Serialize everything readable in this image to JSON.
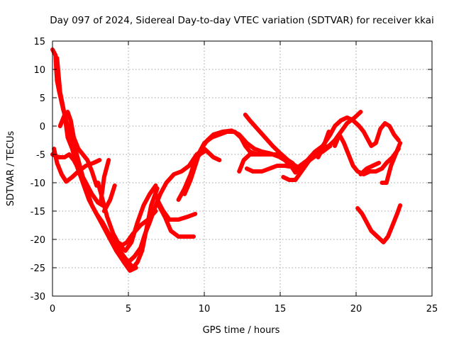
{
  "chart_data": {
    "type": "line",
    "title": "Day 097 of 2024, Sidereal Day-to-day VTEC variation (SDTVAR) for receiver kkai",
    "xlabel": "GPS time / hours",
    "ylabel": "SDTVAR / TECUs",
    "xlim": [
      0,
      25
    ],
    "ylim": [
      -30,
      15
    ],
    "xticks": [
      "0",
      "5",
      "10",
      "15",
      "20",
      "25"
    ],
    "yticks": [
      "15",
      "10",
      "5",
      "0",
      "-5",
      "-10",
      "-15",
      "-20",
      "-25",
      "-30"
    ],
    "grid": true,
    "color": "#ff0000",
    "series": [
      {
        "name": "track-1",
        "points": [
          [
            0.0,
            13.5
          ],
          [
            0.2,
            12.5
          ],
          [
            0.25,
            10
          ],
          [
            0.3,
            8
          ],
          [
            0.45,
            6
          ],
          [
            0.7,
            3
          ],
          [
            1.0,
            0
          ],
          [
            1.3,
            -2
          ],
          [
            1.6,
            -5
          ],
          [
            1.9,
            -8
          ],
          [
            2.2,
            -11
          ],
          [
            2.6,
            -14
          ],
          [
            3.0,
            -16
          ],
          [
            3.4,
            -18
          ],
          [
            3.8,
            -20
          ],
          [
            4.2,
            -22
          ],
          [
            4.7,
            -24
          ],
          [
            5.1,
            -25.5
          ],
          [
            5.5,
            -25
          ]
        ]
      },
      {
        "name": "track-2",
        "points": [
          [
            0.3,
            12
          ],
          [
            0.5,
            6
          ],
          [
            0.8,
            2
          ],
          [
            1.0,
            -2
          ],
          [
            1.3,
            -4
          ],
          [
            1.6,
            -7
          ],
          [
            2.0,
            -10
          ],
          [
            2.4,
            -13
          ],
          [
            2.9,
            -15.5
          ],
          [
            3.3,
            -17
          ],
          [
            3.7,
            -19
          ],
          [
            4.2,
            -21
          ],
          [
            4.7,
            -23
          ],
          [
            5.3,
            -25
          ],
          [
            5.6,
            -24
          ],
          [
            5.9,
            -22
          ],
          [
            6.2,
            -18
          ],
          [
            6.5,
            -14
          ],
          [
            6.9,
            -11
          ]
        ]
      },
      {
        "name": "track-3",
        "points": [
          [
            0.1,
            -4
          ],
          [
            0.3,
            -6.5
          ],
          [
            0.6,
            -8.5
          ],
          [
            0.9,
            -9.8
          ],
          [
            1.3,
            -9
          ],
          [
            1.7,
            -8
          ],
          [
            2.2,
            -7
          ],
          [
            2.7,
            -6.5
          ],
          [
            3.1,
            -6
          ]
        ]
      },
      {
        "name": "track-4",
        "points": [
          [
            0.0,
            -5
          ],
          [
            0.4,
            -5.5
          ],
          [
            0.8,
            -5.5
          ],
          [
            1.1,
            -5
          ],
          [
            1.4,
            -6
          ],
          [
            1.8,
            -8
          ],
          [
            2.2,
            -10
          ],
          [
            2.6,
            -12
          ],
          [
            3.0,
            -13.5
          ],
          [
            3.3,
            -14
          ]
        ]
      },
      {
        "name": "track-5",
        "points": [
          [
            0.5,
            0
          ],
          [
            0.8,
            2
          ],
          [
            1.0,
            2.5
          ],
          [
            1.2,
            1
          ],
          [
            1.4,
            -2
          ],
          [
            1.7,
            -4
          ],
          [
            2.0,
            -5
          ],
          [
            2.3,
            -6
          ],
          [
            2.6,
            -8
          ],
          [
            2.9,
            -10.5
          ]
        ]
      },
      {
        "name": "track-6",
        "points": [
          [
            3.2,
            -13
          ],
          [
            3.4,
            -9
          ],
          [
            3.7,
            -6
          ]
        ]
      },
      {
        "name": "track-7",
        "points": [
          [
            3.4,
            -15
          ],
          [
            3.8,
            -13
          ],
          [
            4.1,
            -10.5
          ]
        ]
      },
      {
        "name": "track-8",
        "points": [
          [
            3.0,
            -10
          ],
          [
            3.3,
            -13
          ],
          [
            3.6,
            -16
          ],
          [
            4.0,
            -19
          ],
          [
            4.4,
            -21
          ],
          [
            4.8,
            -22
          ],
          [
            5.2,
            -20.5
          ],
          [
            5.6,
            -17
          ],
          [
            6.0,
            -14
          ],
          [
            6.4,
            -12
          ],
          [
            6.8,
            -10.5
          ]
        ]
      },
      {
        "name": "track-9",
        "points": [
          [
            4.0,
            -19
          ],
          [
            4.3,
            -20.5
          ],
          [
            4.6,
            -21
          ],
          [
            4.9,
            -20.5
          ],
          [
            5.3,
            -19
          ],
          [
            5.8,
            -17.5
          ],
          [
            6.3,
            -16.5
          ],
          [
            6.8,
            -15
          ]
        ]
      },
      {
        "name": "track-10",
        "points": [
          [
            5.0,
            -24
          ],
          [
            5.4,
            -23
          ],
          [
            5.8,
            -21.5
          ],
          [
            6.1,
            -19
          ],
          [
            6.4,
            -17
          ],
          [
            6.8,
            -14
          ],
          [
            7.1,
            -12
          ],
          [
            7.5,
            -10
          ],
          [
            8.0,
            -8.5
          ],
          [
            8.5,
            -8
          ],
          [
            9.0,
            -7
          ],
          [
            9.5,
            -5
          ],
          [
            10.0,
            -4
          ],
          [
            10.6,
            -5.5
          ],
          [
            11.0,
            -6
          ]
        ]
      },
      {
        "name": "track-11",
        "points": [
          [
            6.8,
            -12
          ],
          [
            7.0,
            -13.5
          ],
          [
            7.3,
            -15
          ],
          [
            7.7,
            -16.5
          ],
          [
            8.3,
            -16.5
          ],
          [
            8.9,
            -16
          ],
          [
            9.4,
            -15.5
          ]
        ]
      },
      {
        "name": "track-12",
        "points": [
          [
            7.0,
            -14
          ],
          [
            7.4,
            -16
          ],
          [
            7.8,
            -18.5
          ],
          [
            8.3,
            -19.5
          ],
          [
            8.8,
            -19.5
          ],
          [
            9.3,
            -19.5
          ]
        ]
      },
      {
        "name": "track-13",
        "points": [
          [
            8.3,
            -13
          ],
          [
            8.7,
            -11
          ],
          [
            9.1,
            -8.5
          ],
          [
            9.4,
            -6
          ],
          [
            9.7,
            -5
          ],
          [
            10.0,
            -4.5
          ]
        ]
      },
      {
        "name": "track-14",
        "points": [
          [
            8.7,
            -12
          ],
          [
            9.1,
            -9.5
          ],
          [
            9.4,
            -7
          ],
          [
            9.7,
            -4.5
          ],
          [
            10.0,
            -3
          ],
          [
            10.5,
            -2
          ],
          [
            11.0,
            -1.5
          ],
          [
            11.5,
            -1
          ],
          [
            12.0,
            -1
          ],
          [
            12.4,
            -2
          ],
          [
            12.7,
            -3.5
          ],
          [
            13.0,
            -4.5
          ],
          [
            13.5,
            -5
          ],
          [
            14.0,
            -5
          ],
          [
            14.5,
            -5
          ],
          [
            15.0,
            -5.5
          ],
          [
            15.5,
            -6
          ],
          [
            15.8,
            -6.5
          ],
          [
            16.2,
            -8
          ]
        ]
      },
      {
        "name": "track-15",
        "points": [
          [
            9.8,
            -4
          ],
          [
            10.2,
            -2.5
          ],
          [
            10.6,
            -1.5
          ],
          [
            11.2,
            -1
          ],
          [
            11.8,
            -0.8
          ],
          [
            12.3,
            -1.5
          ],
          [
            12.8,
            -3
          ],
          [
            13.3,
            -4
          ],
          [
            13.8,
            -4.5
          ],
          [
            14.3,
            -4.8
          ],
          [
            14.8,
            -5.2
          ],
          [
            15.3,
            -6
          ],
          [
            15.7,
            -7
          ],
          [
            16.0,
            -8.2
          ]
        ]
      },
      {
        "name": "track-16",
        "points": [
          [
            12.7,
            2
          ],
          [
            13.0,
            1
          ],
          [
            13.5,
            -0.5
          ],
          [
            14.0,
            -2
          ],
          [
            14.5,
            -3.5
          ],
          [
            15.0,
            -4.8
          ],
          [
            15.5,
            -6
          ],
          [
            16.0,
            -7
          ],
          [
            16.4,
            -7.5
          ]
        ]
      },
      {
        "name": "track-17",
        "points": [
          [
            12.8,
            -7.5
          ],
          [
            13.2,
            -8
          ],
          [
            13.8,
            -8
          ],
          [
            14.3,
            -7.5
          ],
          [
            14.8,
            -7
          ],
          [
            15.3,
            -7
          ],
          [
            15.8,
            -7.2
          ],
          [
            16.3,
            -7.5
          ],
          [
            16.7,
            -6.5
          ],
          [
            17.2,
            -5.5
          ],
          [
            17.8,
            -4.5
          ],
          [
            18.3,
            -3.5
          ]
        ]
      },
      {
        "name": "track-18",
        "points": [
          [
            12.3,
            -8
          ],
          [
            12.6,
            -6
          ],
          [
            13.0,
            -5
          ],
          [
            13.5,
            -5
          ],
          [
            14.0,
            -5
          ],
          [
            14.5,
            -5
          ],
          [
            15.0,
            -5
          ],
          [
            15.5,
            -6
          ]
        ]
      },
      {
        "name": "track-19",
        "points": [
          [
            15.2,
            -9
          ],
          [
            15.6,
            -9.5
          ],
          [
            16.0,
            -9.5
          ],
          [
            16.4,
            -8
          ],
          [
            16.8,
            -6.5
          ],
          [
            17.2,
            -5
          ],
          [
            17.7,
            -4
          ],
          [
            18.2,
            -3.5
          ],
          [
            18.6,
            -2.5
          ],
          [
            19.0,
            -1
          ],
          [
            19.4,
            0.5
          ],
          [
            19.9,
            1.5
          ],
          [
            20.3,
            2.5
          ]
        ]
      },
      {
        "name": "track-20",
        "points": [
          [
            16.3,
            -7
          ],
          [
            16.8,
            -6
          ],
          [
            17.3,
            -4.5
          ],
          [
            17.8,
            -3.5
          ],
          [
            18.3,
            -1.5
          ],
          [
            18.6,
            0
          ],
          [
            19.0,
            1
          ],
          [
            19.4,
            1.5
          ],
          [
            19.8,
            1
          ],
          [
            20.2,
            0
          ],
          [
            20.5,
            -1
          ],
          [
            20.8,
            -2.5
          ],
          [
            21.0,
            -3.5
          ],
          [
            21.3,
            -3
          ],
          [
            21.6,
            -0.5
          ],
          [
            21.9,
            0.5
          ],
          [
            22.2,
            0
          ],
          [
            22.5,
            -1.5
          ],
          [
            22.8,
            -2.5
          ]
        ]
      },
      {
        "name": "track-21",
        "points": [
          [
            17.5,
            -5.5
          ],
          [
            17.8,
            -4
          ],
          [
            18.0,
            -2.5
          ],
          [
            18.2,
            -1
          ]
        ]
      },
      {
        "name": "track-22",
        "points": [
          [
            18.6,
            -3.5
          ],
          [
            18.9,
            -1.5
          ],
          [
            19.2,
            -3
          ],
          [
            19.5,
            -5
          ],
          [
            19.8,
            -7
          ],
          [
            20.1,
            -8
          ],
          [
            20.5,
            -8.5
          ],
          [
            20.9,
            -8
          ],
          [
            21.3,
            -8
          ],
          [
            21.7,
            -7.5
          ],
          [
            22.0,
            -6.5
          ],
          [
            22.4,
            -5.5
          ],
          [
            22.8,
            -4
          ]
        ]
      },
      {
        "name": "track-23",
        "points": [
          [
            20.3,
            -8.5
          ],
          [
            20.7,
            -7.5
          ],
          [
            21.1,
            -7
          ],
          [
            21.5,
            -6.5
          ]
        ]
      },
      {
        "name": "track-24",
        "points": [
          [
            21.7,
            -10
          ],
          [
            22.0,
            -10
          ],
          [
            22.3,
            -7
          ],
          [
            22.6,
            -5
          ],
          [
            22.9,
            -3
          ]
        ]
      },
      {
        "name": "track-25",
        "points": [
          [
            20.1,
            -14.5
          ],
          [
            20.4,
            -15.5
          ],
          [
            20.7,
            -17
          ],
          [
            21.0,
            -18.5
          ],
          [
            21.4,
            -19.5
          ],
          [
            21.8,
            -20.5
          ],
          [
            22.1,
            -19.5
          ],
          [
            22.4,
            -17.5
          ],
          [
            22.7,
            -15.5
          ],
          [
            22.9,
            -14
          ]
        ]
      }
    ]
  }
}
